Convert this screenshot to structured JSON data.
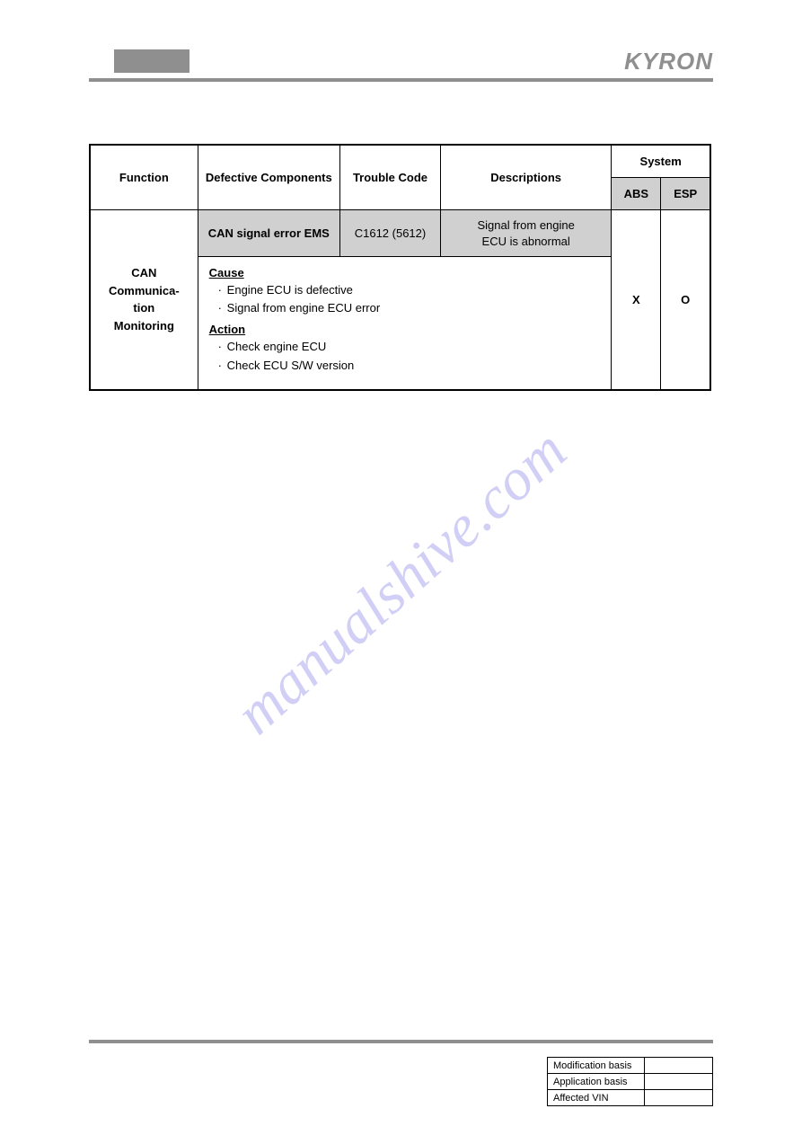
{
  "brand": "KYRON",
  "watermark": "manualshive.com",
  "table": {
    "headers": {
      "function": "Function",
      "defective": "Defective Components",
      "trouble": "Trouble Code",
      "descriptions": "Descriptions",
      "system": "System",
      "abs": "ABS",
      "esp": "ESP"
    },
    "function_cell": "CAN\nCommunica-\ntion\nMonitoring",
    "row": {
      "defective": "CAN signal error EMS",
      "trouble_code": "C1612 (5612)",
      "description": "Signal from engine\nECU is abnormal",
      "abs": "X",
      "esp": "O"
    },
    "detail": {
      "cause_label": "Cause",
      "causes": [
        "Engine ECU is defective",
        "Signal from engine ECU error"
      ],
      "action_label": "Action",
      "actions": [
        "Check engine ECU",
        "Check ECU S/W version"
      ]
    },
    "styling": {
      "border_color": "#000000",
      "shaded_bg": "#d0d0d0",
      "header_fontsize": 13,
      "body_fontsize": 12,
      "function_fontsize": 15
    }
  },
  "footer": {
    "rows": [
      {
        "label": "Modification basis",
        "value": ""
      },
      {
        "label": "Application basis",
        "value": ""
      },
      {
        "label": "Affected VIN",
        "value": ""
      }
    ]
  },
  "colors": {
    "page_bg": "#ffffff",
    "gray_block": "#8f8f8f",
    "rule": "#8f8f8f",
    "logo": "#8f8f8f",
    "watermark": "rgba(122,118,226,0.35)"
  }
}
